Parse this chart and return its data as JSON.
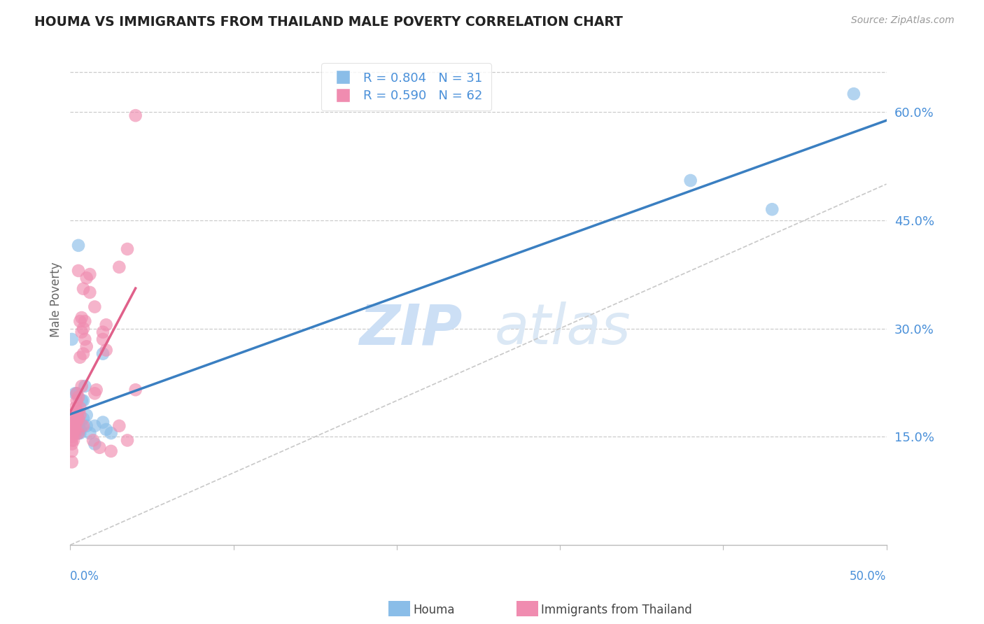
{
  "title": "HOUMA VS IMMIGRANTS FROM THAILAND MALE POVERTY CORRELATION CHART",
  "source": "Source: ZipAtlas.com",
  "ylabel": "Male Poverty",
  "right_yticks": [
    "15.0%",
    "30.0%",
    "45.0%",
    "60.0%"
  ],
  "right_ytick_vals": [
    0.15,
    0.3,
    0.45,
    0.6
  ],
  "xlim": [
    0.0,
    0.5
  ],
  "ylim": [
    0.0,
    0.68
  ],
  "legend_r_houma": "R = 0.804",
  "legend_n_houma": "N = 31",
  "legend_r_thailand": "R = 0.590",
  "legend_n_thailand": "N = 62",
  "color_houma": "#8abde8",
  "color_thailand": "#f08cb0",
  "color_houma_line": "#3a7fc1",
  "color_thailand_line": "#e0608a",
  "color_diagonal": "#c8c8c8",
  "watermark_zip": "ZIP",
  "watermark_atlas": "atlas",
  "houma_x": [
    0.002,
    0.003,
    0.003,
    0.004,
    0.004,
    0.005,
    0.005,
    0.005,
    0.006,
    0.006,
    0.007,
    0.007,
    0.008,
    0.008,
    0.009,
    0.01,
    0.01,
    0.012,
    0.015,
    0.015,
    0.02,
    0.02,
    0.022,
    0.025,
    0.001,
    0.003,
    0.004,
    0.005,
    0.38,
    0.43,
    0.48
  ],
  "houma_y": [
    0.17,
    0.17,
    0.16,
    0.16,
    0.165,
    0.175,
    0.165,
    0.155,
    0.16,
    0.155,
    0.165,
    0.2,
    0.175,
    0.2,
    0.22,
    0.18,
    0.165,
    0.155,
    0.14,
    0.165,
    0.17,
    0.265,
    0.16,
    0.155,
    0.285,
    0.21,
    0.21,
    0.415,
    0.505,
    0.465,
    0.625
  ],
  "thailand_x": [
    0.001,
    0.001,
    0.001,
    0.001,
    0.001,
    0.001,
    0.001,
    0.001,
    0.002,
    0.002,
    0.002,
    0.002,
    0.002,
    0.003,
    0.003,
    0.003,
    0.003,
    0.003,
    0.003,
    0.004,
    0.004,
    0.004,
    0.004,
    0.004,
    0.005,
    0.005,
    0.005,
    0.005,
    0.006,
    0.006,
    0.006,
    0.006,
    0.007,
    0.007,
    0.007,
    0.008,
    0.008,
    0.008,
    0.009,
    0.009,
    0.01,
    0.01,
    0.012,
    0.012,
    0.014,
    0.015,
    0.016,
    0.018,
    0.02,
    0.022,
    0.025,
    0.03,
    0.035,
    0.04,
    0.005,
    0.008,
    0.015,
    0.02,
    0.022,
    0.03,
    0.035,
    0.04
  ],
  "thailand_y": [
    0.115,
    0.13,
    0.14,
    0.145,
    0.15,
    0.155,
    0.16,
    0.165,
    0.145,
    0.155,
    0.16,
    0.165,
    0.175,
    0.155,
    0.16,
    0.165,
    0.175,
    0.18,
    0.19,
    0.17,
    0.175,
    0.185,
    0.2,
    0.21,
    0.155,
    0.175,
    0.185,
    0.205,
    0.18,
    0.19,
    0.26,
    0.31,
    0.22,
    0.295,
    0.315,
    0.265,
    0.3,
    0.355,
    0.285,
    0.31,
    0.275,
    0.37,
    0.35,
    0.375,
    0.145,
    0.21,
    0.215,
    0.135,
    0.295,
    0.27,
    0.13,
    0.165,
    0.145,
    0.215,
    0.38,
    0.165,
    0.33,
    0.285,
    0.305,
    0.385,
    0.41,
    0.595
  ]
}
